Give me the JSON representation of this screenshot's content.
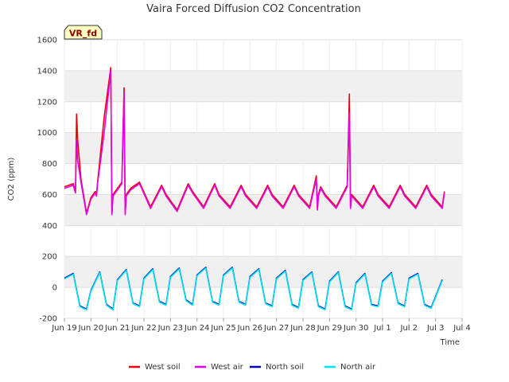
{
  "chart_data": {
    "type": "line",
    "title": "Vaira Forced Diffusion CO2 Concentration",
    "xlabel": "Time",
    "ylabel": "CO2 (ppm)",
    "badge": "VR_fd",
    "ylim": [
      -200,
      1600
    ],
    "yticks": [
      -200,
      0,
      200,
      400,
      600,
      800,
      1000,
      1200,
      1400,
      1600
    ],
    "xlim": [
      "2024-06-19",
      "2024-07-04"
    ],
    "xticks": [
      {
        "date": "2024-06-19",
        "label": "Jun 19"
      },
      {
        "date": "2024-06-20",
        "label": "Jun 20"
      },
      {
        "date": "2024-06-21",
        "label": "Jun 21"
      },
      {
        "date": "2024-06-22",
        "label": "Jun 22"
      },
      {
        "date": "2024-06-23",
        "label": "Jun 23"
      },
      {
        "date": "2024-06-24",
        "label": "Jun 24"
      },
      {
        "date": "2024-06-25",
        "label": "Jun 25"
      },
      {
        "date": "2024-06-26",
        "label": "Jun 26"
      },
      {
        "date": "2024-06-27",
        "label": "Jun 27"
      },
      {
        "date": "2024-06-28",
        "label": "Jun 28"
      },
      {
        "date": "2024-06-29",
        "label": "Jun 29"
      },
      {
        "date": "2024-06-30",
        "label": "Jun 30"
      },
      {
        "date": "2024-07-01",
        "label": "Jul 1"
      },
      {
        "date": "2024-07-02",
        "label": "Jul 2"
      },
      {
        "date": "2024-07-03",
        "label": "Jul 3"
      },
      {
        "date": "2024-07-04",
        "label": "Jul 4"
      }
    ],
    "grid": true,
    "legend_position": "bottom",
    "series": [
      {
        "name": "West soil",
        "color": "#e8000b",
        "x": [
          "2024-06-19 00:00",
          "2024-06-19 08:00",
          "2024-06-19 10:00",
          "2024-06-19 11:00",
          "2024-06-19 12:00",
          "2024-06-19 15:00",
          "2024-06-19 20:00",
          "2024-06-20 00:00",
          "2024-06-20 04:00",
          "2024-06-20 05:00",
          "2024-06-20 06:00",
          "2024-06-20 12:00",
          "2024-06-20 18:00",
          "2024-06-20 19:00",
          "2024-06-20 20:00",
          "2024-06-21 00:00",
          "2024-06-21 04:00",
          "2024-06-21 06:00",
          "2024-06-21 07:00",
          "2024-06-21 08:00",
          "2024-06-21 12:00",
          "2024-06-21 20:00",
          "2024-06-22 06:00",
          "2024-06-22 16:00",
          "2024-06-22 20:00",
          "2024-06-23 06:00",
          "2024-06-23 16:00",
          "2024-06-23 20:00",
          "2024-06-24 06:00",
          "2024-06-24 16:00",
          "2024-06-24 20:00",
          "2024-06-25 06:00",
          "2024-06-25 16:00",
          "2024-06-25 20:00",
          "2024-06-26 06:00",
          "2024-06-26 16:00",
          "2024-06-26 20:00",
          "2024-06-27 06:00",
          "2024-06-27 16:00",
          "2024-06-27 20:00",
          "2024-06-28 06:00",
          "2024-06-28 12:00",
          "2024-06-28 13:00",
          "2024-06-28 14:00",
          "2024-06-28 16:00",
          "2024-06-28 20:00",
          "2024-06-29 06:00",
          "2024-06-29 16:00",
          "2024-06-29 18:00",
          "2024-06-29 19:00",
          "2024-06-29 20:00",
          "2024-06-30 06:00",
          "2024-06-30 16:00",
          "2024-06-30 20:00",
          "2024-07-01 06:00",
          "2024-07-01 16:00",
          "2024-07-01 20:00",
          "2024-07-02 06:00",
          "2024-07-02 16:00",
          "2024-07-02 20:00",
          "2024-07-03 06:00",
          "2024-07-03 08:00"
        ],
        "values": [
          650,
          670,
          620,
          1120,
          950,
          700,
          480,
          580,
          620,
          600,
          680,
          1100,
          1420,
          480,
          600,
          640,
          680,
          1290,
          480,
          600,
          640,
          680,
          520,
          660,
          600,
          500,
          670,
          620,
          520,
          670,
          600,
          520,
          660,
          600,
          520,
          660,
          600,
          520,
          660,
          600,
          520,
          720,
          510,
          600,
          650,
          600,
          520,
          660,
          1250,
          520,
          600,
          520,
          660,
          600,
          520,
          660,
          600,
          520,
          660,
          600,
          520,
          620
        ]
      },
      {
        "name": "West air",
        "color": "#e600e6",
        "x": [
          "2024-06-19 00:00",
          "2024-06-19 08:00",
          "2024-06-19 10:00",
          "2024-06-19 11:00",
          "2024-06-19 12:00",
          "2024-06-19 15:00",
          "2024-06-19 20:00",
          "2024-06-20 00:00",
          "2024-06-20 04:00",
          "2024-06-20 05:00",
          "2024-06-20 06:00",
          "2024-06-20 12:00",
          "2024-06-20 18:00",
          "2024-06-20 19:00",
          "2024-06-20 20:00",
          "2024-06-21 00:00",
          "2024-06-21 04:00",
          "2024-06-21 06:00",
          "2024-06-21 07:00",
          "2024-06-21 08:00",
          "2024-06-21 12:00",
          "2024-06-21 20:00",
          "2024-06-22 06:00",
          "2024-06-22 16:00",
          "2024-06-22 20:00",
          "2024-06-23 06:00",
          "2024-06-23 16:00",
          "2024-06-23 20:00",
          "2024-06-24 06:00",
          "2024-06-24 16:00",
          "2024-06-24 20:00",
          "2024-06-25 06:00",
          "2024-06-25 16:00",
          "2024-06-25 20:00",
          "2024-06-26 06:00",
          "2024-06-26 16:00",
          "2024-06-26 20:00",
          "2024-06-27 06:00",
          "2024-06-27 16:00",
          "2024-06-27 20:00",
          "2024-06-28 06:00",
          "2024-06-28 12:00",
          "2024-06-28 13:00",
          "2024-06-28 14:00",
          "2024-06-28 16:00",
          "2024-06-28 20:00",
          "2024-06-29 06:00",
          "2024-06-29 16:00",
          "2024-06-29 18:00",
          "2024-06-29 19:00",
          "2024-06-29 20:00",
          "2024-06-30 06:00",
          "2024-06-30 16:00",
          "2024-06-30 20:00",
          "2024-07-01 06:00",
          "2024-07-01 16:00",
          "2024-07-01 20:00",
          "2024-07-02 06:00",
          "2024-07-02 16:00",
          "2024-07-02 20:00",
          "2024-07-03 06:00",
          "2024-07-03 08:00"
        ],
        "values": [
          640,
          660,
          610,
          950,
          820,
          680,
          470,
          570,
          610,
          590,
          670,
          1000,
          1400,
          470,
          590,
          630,
          670,
          1260,
          470,
          590,
          630,
          670,
          510,
          650,
          590,
          490,
          660,
          610,
          510,
          660,
          590,
          510,
          650,
          590,
          510,
          650,
          590,
          510,
          650,
          590,
          510,
          700,
          500,
          590,
          640,
          590,
          510,
          650,
          1130,
          510,
          590,
          510,
          650,
          590,
          510,
          650,
          590,
          510,
          650,
          590,
          510,
          610
        ]
      },
      {
        "name": "North soil",
        "color": "#0000cd",
        "x": [
          "2024-06-19 00:00",
          "2024-06-19 08:00",
          "2024-06-19 14:00",
          "2024-06-19 20:00",
          "2024-06-20 00:00",
          "2024-06-20 08:00",
          "2024-06-20 14:00",
          "2024-06-20 20:00",
          "2024-06-21 00:00",
          "2024-06-21 08:00",
          "2024-06-21 14:00",
          "2024-06-21 20:00",
          "2024-06-22 00:00",
          "2024-06-22 08:00",
          "2024-06-22 14:00",
          "2024-06-22 20:00",
          "2024-06-23 00:00",
          "2024-06-23 08:00",
          "2024-06-23 14:00",
          "2024-06-23 20:00",
          "2024-06-24 00:00",
          "2024-06-24 08:00",
          "2024-06-24 14:00",
          "2024-06-24 20:00",
          "2024-06-25 00:00",
          "2024-06-25 08:00",
          "2024-06-25 14:00",
          "2024-06-25 20:00",
          "2024-06-26 00:00",
          "2024-06-26 08:00",
          "2024-06-26 14:00",
          "2024-06-26 20:00",
          "2024-06-27 00:00",
          "2024-06-27 08:00",
          "2024-06-27 14:00",
          "2024-06-27 20:00",
          "2024-06-28 00:00",
          "2024-06-28 08:00",
          "2024-06-28 14:00",
          "2024-06-28 20:00",
          "2024-06-29 00:00",
          "2024-06-29 08:00",
          "2024-06-29 14:00",
          "2024-06-29 20:00",
          "2024-06-30 00:00",
          "2024-06-30 08:00",
          "2024-06-30 14:00",
          "2024-06-30 20:00",
          "2024-07-01 00:00",
          "2024-07-01 08:00",
          "2024-07-01 14:00",
          "2024-07-01 20:00",
          "2024-07-02 00:00",
          "2024-07-02 08:00",
          "2024-07-02 14:00",
          "2024-07-02 20:00",
          "2024-07-03 00:00",
          "2024-07-03 06:00"
        ],
        "values": [
          60,
          90,
          -120,
          -140,
          -20,
          100,
          -110,
          -140,
          50,
          115,
          -100,
          -120,
          60,
          120,
          -90,
          -110,
          70,
          125,
          -80,
          -110,
          80,
          130,
          -90,
          -110,
          80,
          130,
          -90,
          -110,
          70,
          120,
          -100,
          -120,
          60,
          110,
          -110,
          -130,
          50,
          100,
          -120,
          -140,
          40,
          100,
          -120,
          -140,
          30,
          90,
          -110,
          -120,
          40,
          95,
          -100,
          -120,
          60,
          90,
          -110,
          -130,
          -60,
          50
        ]
      },
      {
        "name": "North air",
        "color": "#00e5ee",
        "x": [
          "2024-06-19 00:00",
          "2024-06-19 08:00",
          "2024-06-19 14:00",
          "2024-06-19 20:00",
          "2024-06-20 00:00",
          "2024-06-20 08:00",
          "2024-06-20 14:00",
          "2024-06-20 20:00",
          "2024-06-21 00:00",
          "2024-06-21 08:00",
          "2024-06-21 14:00",
          "2024-06-21 20:00",
          "2024-06-22 00:00",
          "2024-06-22 08:00",
          "2024-06-22 14:00",
          "2024-06-22 20:00",
          "2024-06-23 00:00",
          "2024-06-23 08:00",
          "2024-06-23 14:00",
          "2024-06-23 20:00",
          "2024-06-24 00:00",
          "2024-06-24 08:00",
          "2024-06-24 14:00",
          "2024-06-24 20:00",
          "2024-06-25 00:00",
          "2024-06-25 08:00",
          "2024-06-25 14:00",
          "2024-06-25 20:00",
          "2024-06-26 00:00",
          "2024-06-26 08:00",
          "2024-06-26 14:00",
          "2024-06-26 20:00",
          "2024-06-27 00:00",
          "2024-06-27 08:00",
          "2024-06-27 14:00",
          "2024-06-27 20:00",
          "2024-06-28 00:00",
          "2024-06-28 08:00",
          "2024-06-28 14:00",
          "2024-06-28 20:00",
          "2024-06-29 00:00",
          "2024-06-29 08:00",
          "2024-06-29 14:00",
          "2024-06-29 20:00",
          "2024-06-30 00:00",
          "2024-06-30 08:00",
          "2024-06-30 14:00",
          "2024-06-30 20:00",
          "2024-07-01 00:00",
          "2024-07-01 08:00",
          "2024-07-01 14:00",
          "2024-07-01 20:00",
          "2024-07-02 00:00",
          "2024-07-02 08:00",
          "2024-07-02 14:00",
          "2024-07-02 20:00",
          "2024-07-03 00:00",
          "2024-07-03 06:00"
        ],
        "values": [
          55,
          85,
          -125,
          -145,
          -25,
          95,
          -115,
          -145,
          45,
          110,
          -105,
          -125,
          55,
          115,
          -95,
          -115,
          65,
          120,
          -85,
          -115,
          75,
          125,
          -95,
          -115,
          75,
          125,
          -95,
          -115,
          65,
          115,
          -105,
          -125,
          55,
          105,
          -115,
          -135,
          45,
          95,
          -125,
          -145,
          35,
          95,
          -125,
          -145,
          25,
          85,
          -115,
          -125,
          35,
          90,
          -105,
          -125,
          55,
          85,
          -115,
          -135,
          -65,
          45
        ]
      }
    ]
  }
}
